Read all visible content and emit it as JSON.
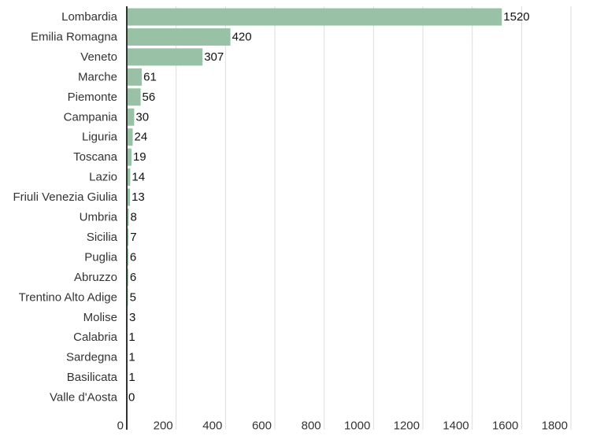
{
  "chart_data": {
    "type": "bar",
    "orientation": "horizontal",
    "title": "",
    "xlabel": "",
    "ylabel": "",
    "categories": [
      "Lombardia",
      "Emilia Romagna",
      "Veneto",
      "Marche",
      "Piemonte",
      "Campania",
      "Liguria",
      "Toscana",
      "Lazio",
      "Friuli Venezia Giulia",
      "Umbria",
      "Sicilia",
      "Puglia",
      "Abruzzo",
      "Trentino Alto Adige",
      "Molise",
      "Calabria",
      "Sardegna",
      "Basilicata",
      "Valle d'Aosta"
    ],
    "values": [
      1520,
      420,
      307,
      61,
      56,
      30,
      24,
      19,
      14,
      13,
      8,
      7,
      6,
      6,
      5,
      3,
      1,
      1,
      1,
      0
    ],
    "xlim": [
      0,
      1800
    ],
    "xticks": [
      0,
      200,
      400,
      600,
      800,
      1000,
      1200,
      1400,
      1600,
      1800
    ],
    "grid": true,
    "data_labels": true,
    "colors": {
      "bar": "#98c1a6",
      "grid": "#dddddd",
      "axis": "#333333"
    }
  }
}
